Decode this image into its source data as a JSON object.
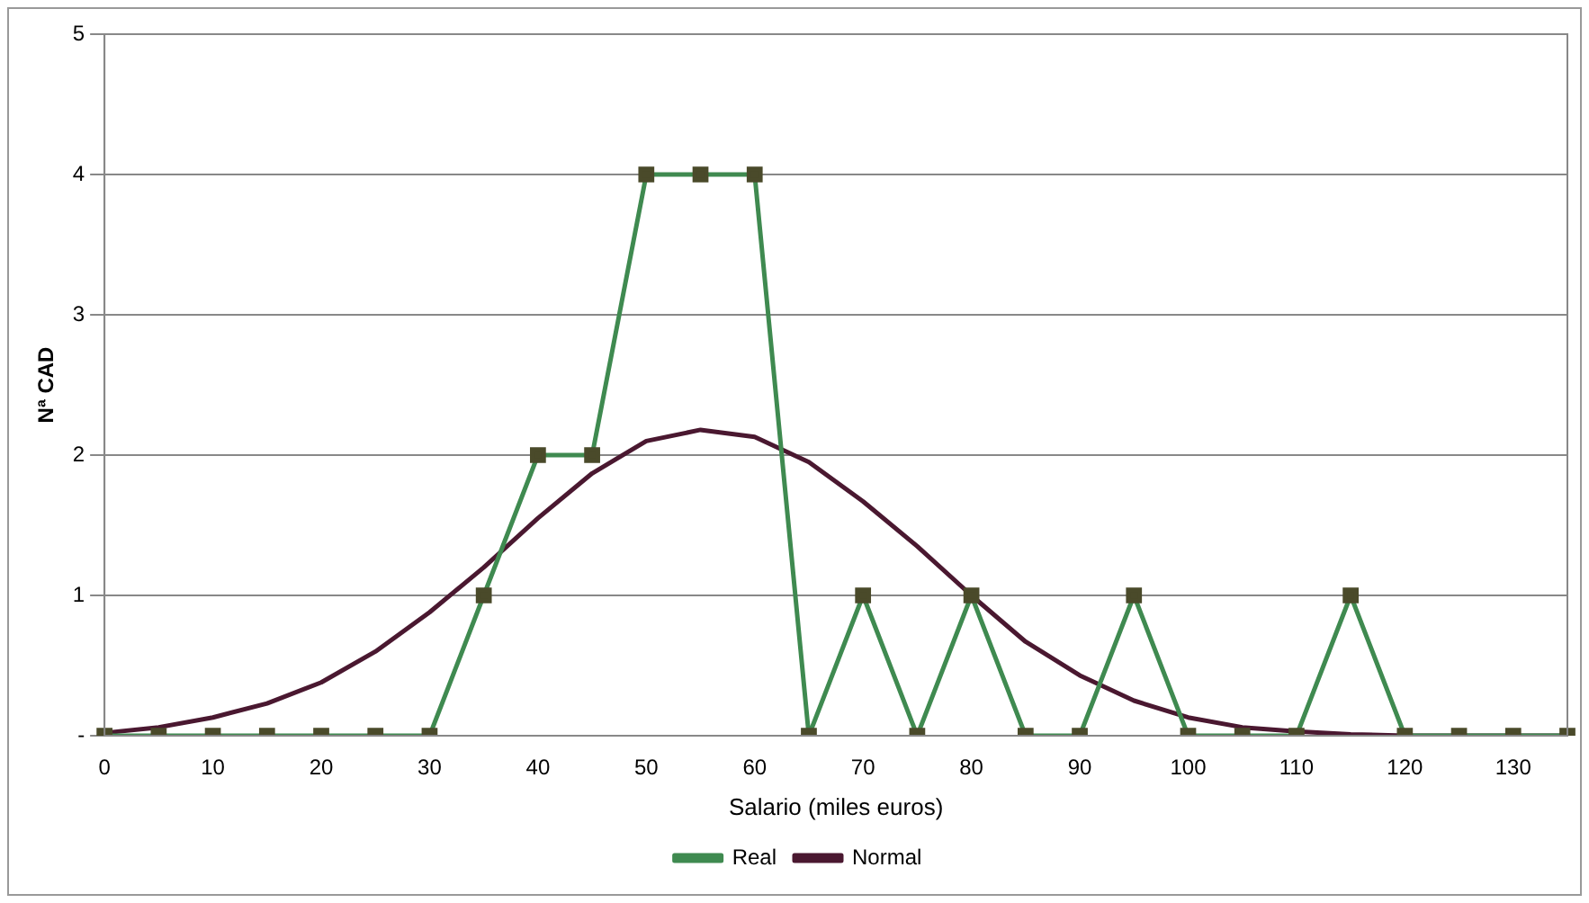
{
  "chart_data": {
    "type": "line",
    "xlabel": "Salario (miles euros)",
    "ylabel": "Nª CAD",
    "categories": [
      "0",
      null,
      "10",
      null,
      "20",
      null,
      "30",
      null,
      "40",
      null,
      "50",
      null,
      "60",
      null,
      "70",
      null,
      "80",
      null,
      "90",
      null,
      "100",
      null,
      "110",
      null,
      "120",
      null,
      "130",
      null
    ],
    "series": [
      {
        "name": "Real",
        "color": "#3f8a50",
        "marker": "square",
        "values": [
          0,
          0,
          0,
          0,
          0,
          0,
          0,
          1,
          2,
          2,
          4,
          4,
          4,
          0,
          1,
          0,
          1,
          0,
          0,
          1,
          0,
          0,
          0,
          1,
          0,
          0,
          0,
          0
        ]
      },
      {
        "name": "Normal",
        "color": "#4a1830",
        "marker": "none",
        "values": [
          0.02,
          0.06,
          0.13,
          0.23,
          0.38,
          0.6,
          0.88,
          1.2,
          1.55,
          1.87,
          2.1,
          2.18,
          2.13,
          1.95,
          1.67,
          1.35,
          1.0,
          0.67,
          0.43,
          0.25,
          0.13,
          0.06,
          0.03,
          0.01,
          0,
          0,
          0,
          0
        ]
      }
    ],
    "ylim": [
      0,
      5
    ],
    "yticks": [
      {
        "value": 0,
        "label": "-"
      },
      1,
      2,
      3,
      4,
      5
    ],
    "grid": "y",
    "legend": "bottom",
    "line_style": "solid"
  }
}
